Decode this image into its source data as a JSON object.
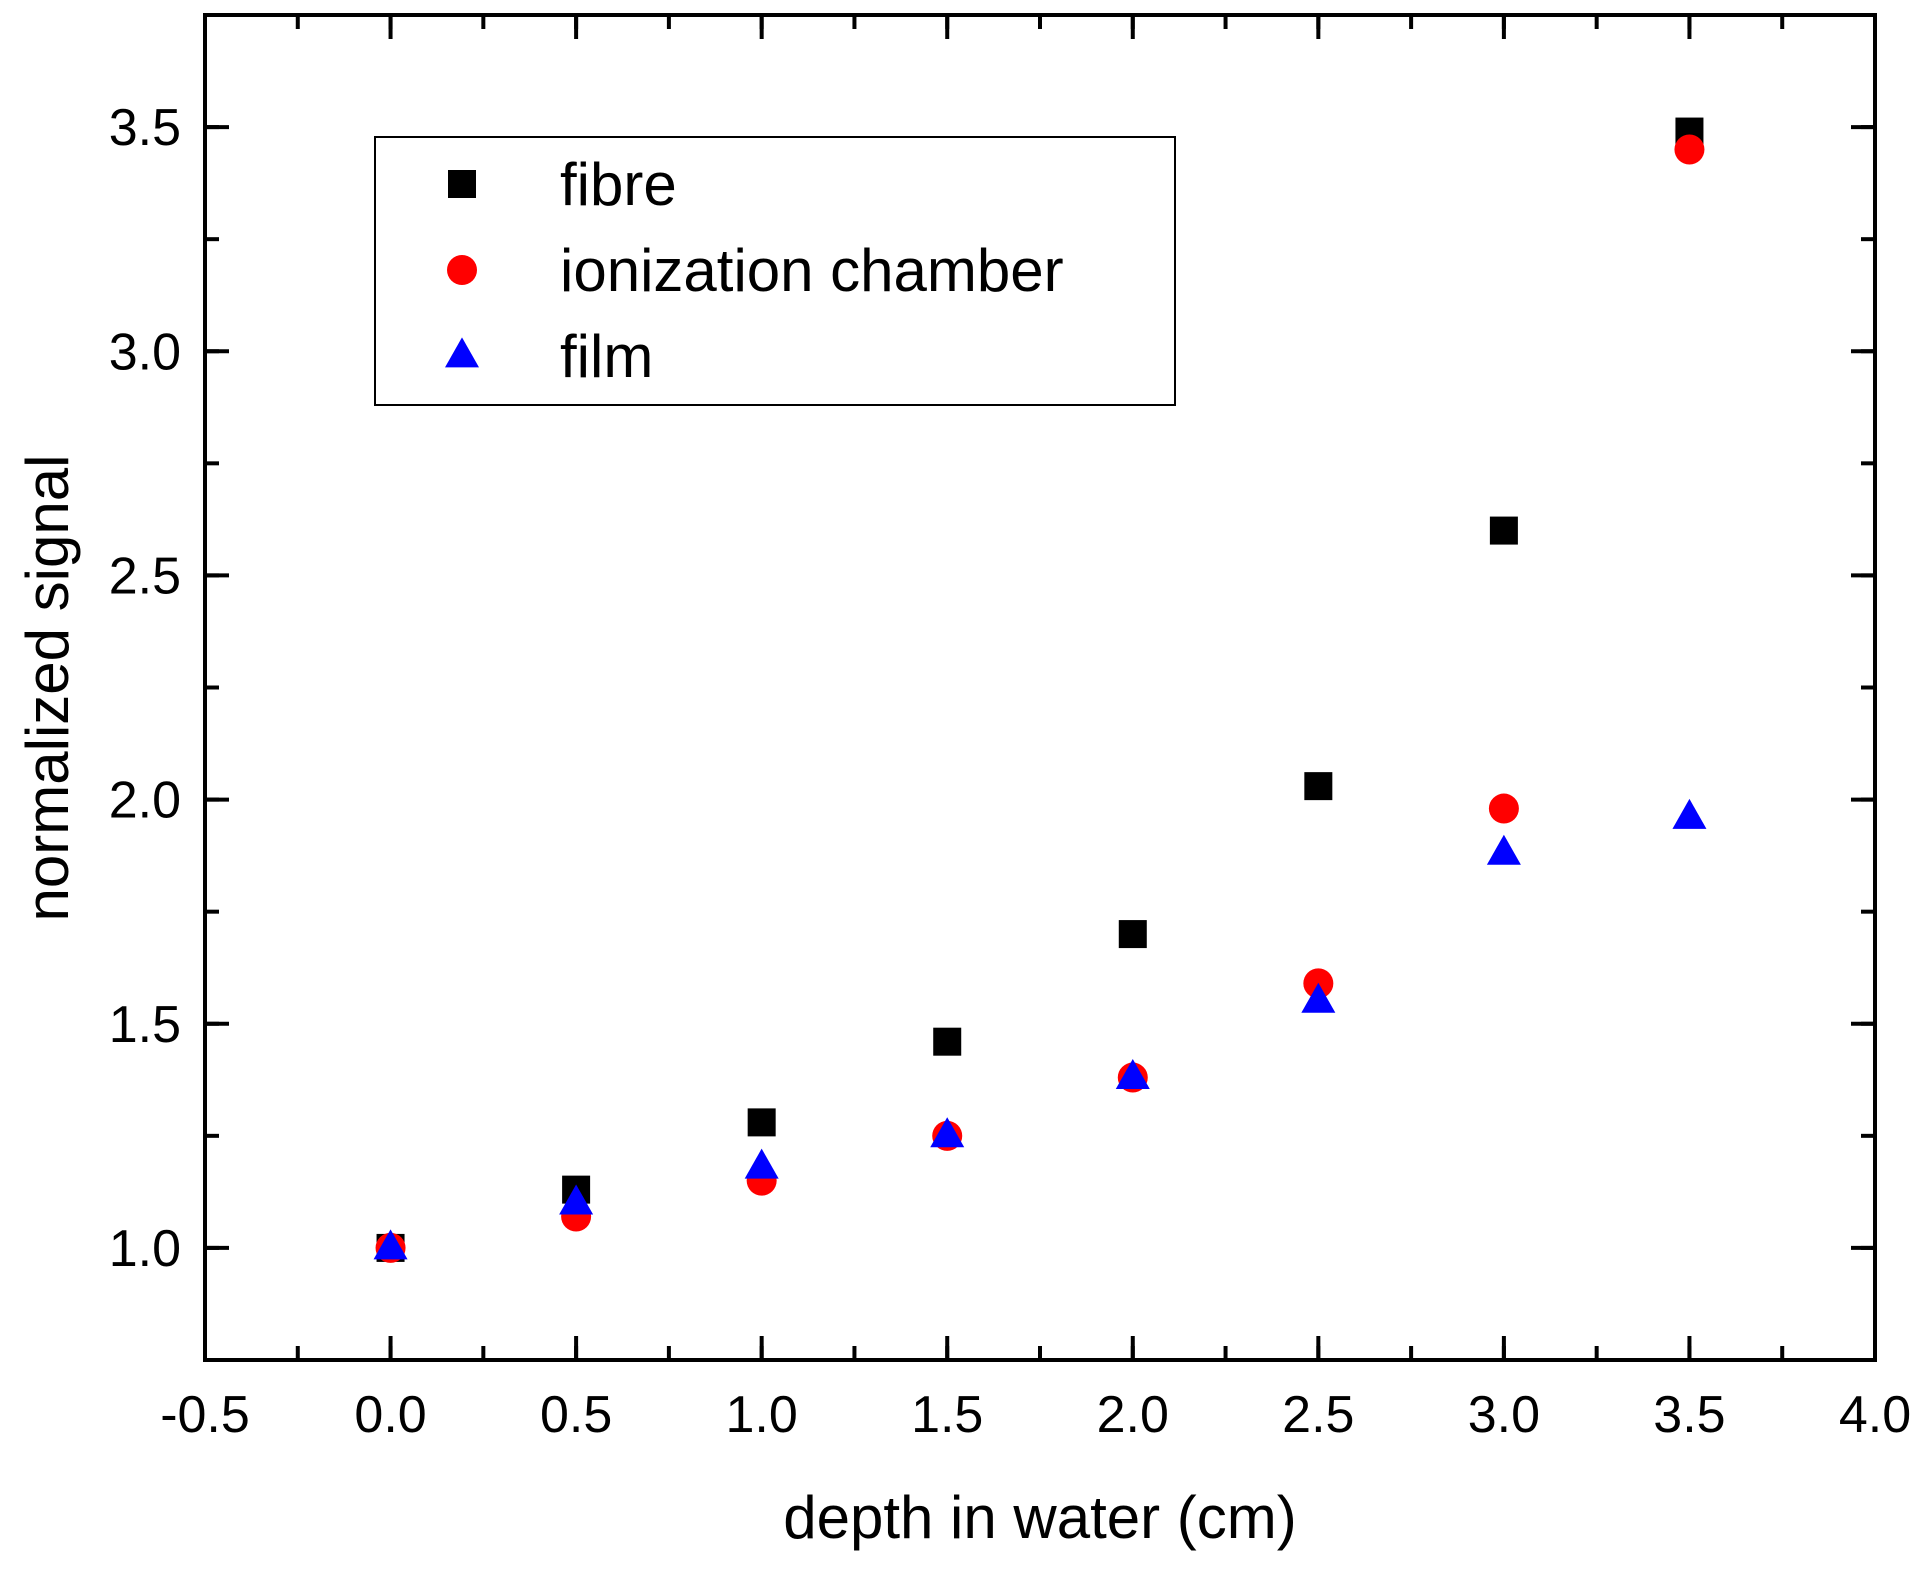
{
  "chart_data": {
    "type": "scatter",
    "title": "",
    "xlabel": "depth in water (cm)",
    "ylabel": "normalized signal",
    "xlim": [
      -0.5,
      4.0
    ],
    "ylim": [
      0.75,
      3.75
    ],
    "xticks": [
      -0.5,
      0.0,
      0.5,
      1.0,
      1.5,
      2.0,
      2.5,
      3.0,
      3.5,
      4.0
    ],
    "xtick_labels": [
      "-0.5",
      "0.0",
      "0.5",
      "1.0",
      "1.5",
      "2.0",
      "2.5",
      "3.0",
      "3.5",
      "4.0"
    ],
    "yticks": [
      1.0,
      1.5,
      2.0,
      2.5,
      3.0,
      3.5
    ],
    "ytick_labels": [
      "1.0",
      "1.5",
      "2.0",
      "2.5",
      "3.0",
      "3.5"
    ],
    "x_minor_step": 0.25,
    "y_minor_step": 0.25,
    "grid": false,
    "legend_position": "top-left",
    "x": [
      0.0,
      0.5,
      1.0,
      1.5,
      2.0,
      2.5,
      3.0,
      3.5
    ],
    "series": [
      {
        "name": "fibre",
        "marker": "square",
        "color": "#000000",
        "values": [
          1.0,
          1.13,
          1.28,
          1.46,
          1.7,
          2.03,
          2.6,
          3.49
        ]
      },
      {
        "name": "ionization chamber",
        "marker": "circle",
        "color": "#ff0000",
        "values": [
          1.0,
          1.07,
          1.15,
          1.25,
          1.38,
          1.59,
          1.98,
          3.45
        ]
      },
      {
        "name": "film",
        "marker": "triangle",
        "color": "#0000ff",
        "values": [
          1.0,
          1.1,
          1.18,
          1.25,
          1.38,
          1.55,
          1.88,
          1.96
        ]
      }
    ]
  }
}
